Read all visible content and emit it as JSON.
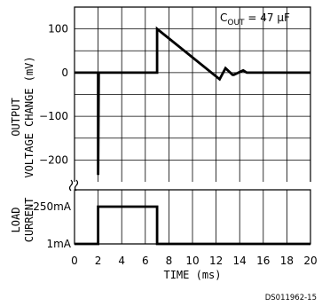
{
  "chart_data": [
    {
      "type": "line",
      "title": "",
      "xlabel": "TIME (ms)",
      "ylabel": "OUTPUT VOLTAGE CHANGE (mV)",
      "xlim": [
        0,
        20
      ],
      "ylim": [
        -250,
        150
      ],
      "x_ticks": [
        "0",
        "2",
        "4",
        "6",
        "8",
        "10",
        "12",
        "14",
        "16",
        "18",
        "20"
      ],
      "y_ticks": [
        {
          "value": 100,
          "label": "100"
        },
        {
          "value": 0,
          "label": "0"
        },
        {
          "value": -100,
          "label": "−100"
        },
        {
          "value": -200,
          "label": "−200"
        }
      ],
      "annotation": {
        "text_main": "C",
        "text_sub": "OUT",
        "text_rest": " = 47 μF"
      },
      "grid": true,
      "series": [
        {
          "x": [
            0,
            2,
            2,
            2.05,
            7,
            7,
            12.3,
            12.8,
            13.4,
            13.5,
            14.3,
            14.6,
            15,
            20
          ],
          "y": [
            0,
            0,
            -235,
            0,
            0,
            100,
            -15,
            10,
            -5,
            -5,
            5,
            0,
            0,
            0
          ]
        }
      ]
    },
    {
      "type": "line",
      "title": "",
      "xlabel": "TIME (ms)",
      "ylabel": "LOAD CURRENT",
      "xlim": [
        0,
        20
      ],
      "y_levels": [
        {
          "label": "250mA",
          "value": 250
        },
        {
          "label": "1mA",
          "value": 1
        }
      ],
      "grid": true,
      "series": [
        {
          "x": [
            0,
            2,
            2,
            7,
            7,
            20
          ],
          "y": [
            1,
            1,
            250,
            250,
            1,
            1
          ]
        }
      ]
    }
  ],
  "footer_id": "DS011962-15"
}
